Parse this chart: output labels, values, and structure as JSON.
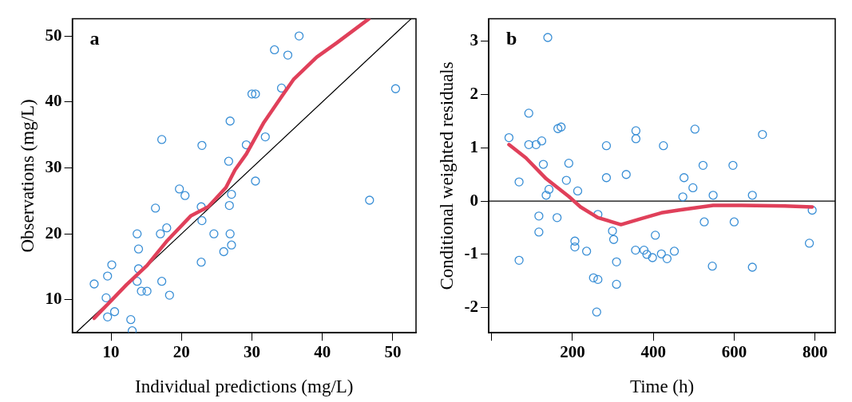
{
  "chart_data": [
    {
      "type": "scatter",
      "xlabel": "Individual predictions (mg/L)",
      "ylabel": "Observations (mg/L)",
      "annotations": [
        "a"
      ],
      "xlim": [
        4.5,
        53.3
      ],
      "ylim": [
        5,
        52.6
      ],
      "xticks": [
        10,
        20,
        30,
        40,
        50
      ],
      "yticks": [
        10,
        20,
        30,
        40,
        50
      ],
      "grid": false,
      "legend": false,
      "series": [
        {
          "marker": "circle",
          "color": "#3a8fd6",
          "x": [
            36.7,
            33.2,
            35.1,
            34.2,
            30.0,
            30.5,
            50.4,
            26.9,
            31.9,
            17.2,
            22.9,
            29.2,
            26.7,
            30.5,
            19.7,
            20.5,
            27.1,
            26.8,
            46.7,
            16.3,
            22.8,
            22.9,
            17.9,
            17.0,
            24.6,
            26.9,
            27.1,
            26.0,
            13.7,
            13.9,
            22.8,
            10.1,
            7.6,
            9.5,
            13.9,
            13.7,
            14.3,
            17.2,
            18.3,
            10.5,
            9.5,
            12.8,
            13.0,
            9.3,
            15.1
          ],
          "values": [
            50.0,
            47.9,
            47.1,
            42.1,
            41.2,
            41.2,
            42.0,
            37.1,
            34.7,
            34.3,
            33.4,
            33.5,
            31.0,
            28.0,
            26.8,
            25.8,
            26.0,
            24.3,
            25.1,
            23.9,
            24.1,
            22.0,
            20.9,
            20.0,
            20.0,
            20.0,
            18.3,
            17.3,
            20.0,
            17.7,
            15.7,
            15.3,
            12.4,
            13.6,
            14.7,
            12.8,
            11.3,
            12.8,
            10.7,
            8.2,
            7.4,
            7.0,
            5.3,
            10.3,
            11.3
          ]
        },
        {
          "type": "line",
          "marker": "none",
          "color": "#e0405a",
          "x": [
            7.6,
            12.2,
            15.1,
            18.0,
            21.3,
            23.8,
            26.3,
            27.6,
            29.2,
            31.7,
            34.2,
            35.9,
            39.2,
            42.1,
            46.6
          ],
          "values": [
            7.2,
            12.3,
            15.2,
            19.0,
            22.7,
            24.1,
            27.0,
            29.7,
            32.1,
            36.9,
            40.8,
            43.4,
            46.8,
            49.0,
            52.6
          ]
        },
        {
          "type": "line",
          "marker": "none",
          "color": "#000000",
          "x": [
            5,
            52.6
          ],
          "values": [
            5,
            52.6
          ]
        }
      ]
    },
    {
      "type": "scatter",
      "xlabel": "Time (h)",
      "ylabel": "Conditional weighted residuals",
      "annotations": [
        "b"
      ],
      "xlim": [
        -7,
        850
      ],
      "ylim": [
        -2.47,
        3.42
      ],
      "xticks": [
        {
          "value": 0,
          "label": null
        },
        200,
        400,
        600,
        800
      ],
      "yticks": [
        -2,
        -1,
        0,
        1,
        2,
        3
      ],
      "grid": false,
      "legend": false,
      "ref_lines": [
        {
          "axis": "y",
          "value": 0,
          "color": "#000000"
        }
      ],
      "series": [
        {
          "marker": "circle",
          "color": "#3a8fd6",
          "x": [
            43,
            68,
            68,
            92,
            92,
            110,
            124,
            117,
            117,
            128,
            139,
            135,
            142,
            162,
            164,
            172,
            185,
            191,
            206,
            206,
            213,
            235,
            252,
            260,
            263,
            263,
            284,
            284,
            299,
            302,
            309,
            309,
            333,
            357,
            357,
            356,
            377,
            384,
            398,
            405,
            420,
            434,
            425,
            452,
            473,
            476,
            498,
            503,
            523,
            526,
            546,
            548,
            597,
            600,
            645,
            645,
            670,
            786,
            793
          ],
          "values": [
            1.19,
            0.36,
            -1.11,
            1.65,
            1.06,
            1.06,
            1.13,
            -0.28,
            -0.58,
            0.69,
            3.07,
            0.11,
            0.22,
            -0.31,
            1.36,
            1.39,
            0.39,
            0.71,
            -0.75,
            -0.86,
            0.19,
            -0.94,
            -1.44,
            -2.08,
            -1.47,
            -0.25,
            1.04,
            0.44,
            -0.56,
            -0.72,
            -1.14,
            -1.56,
            0.5,
            1.32,
            1.17,
            -0.92,
            -0.92,
            -1.0,
            -1.06,
            -0.64,
            -0.99,
            -1.08,
            1.04,
            -0.94,
            0.08,
            0.44,
            0.25,
            1.35,
            0.67,
            -0.39,
            -1.22,
            0.11,
            0.67,
            -0.39,
            -1.24,
            0.11,
            1.25,
            -0.79,
            -0.17
          ]
        },
        {
          "type": "line",
          "marker": "none",
          "color": "#e0405a",
          "x": [
            43,
            85,
            135,
            192,
            220,
            263,
            320,
            370,
            420,
            462,
            519,
            548,
            619,
            725,
            793
          ],
          "values": [
            1.06,
            0.81,
            0.42,
            0.08,
            -0.11,
            -0.31,
            -0.44,
            -0.33,
            -0.22,
            -0.17,
            -0.11,
            -0.08,
            -0.08,
            -0.09,
            -0.11
          ]
        }
      ]
    }
  ]
}
